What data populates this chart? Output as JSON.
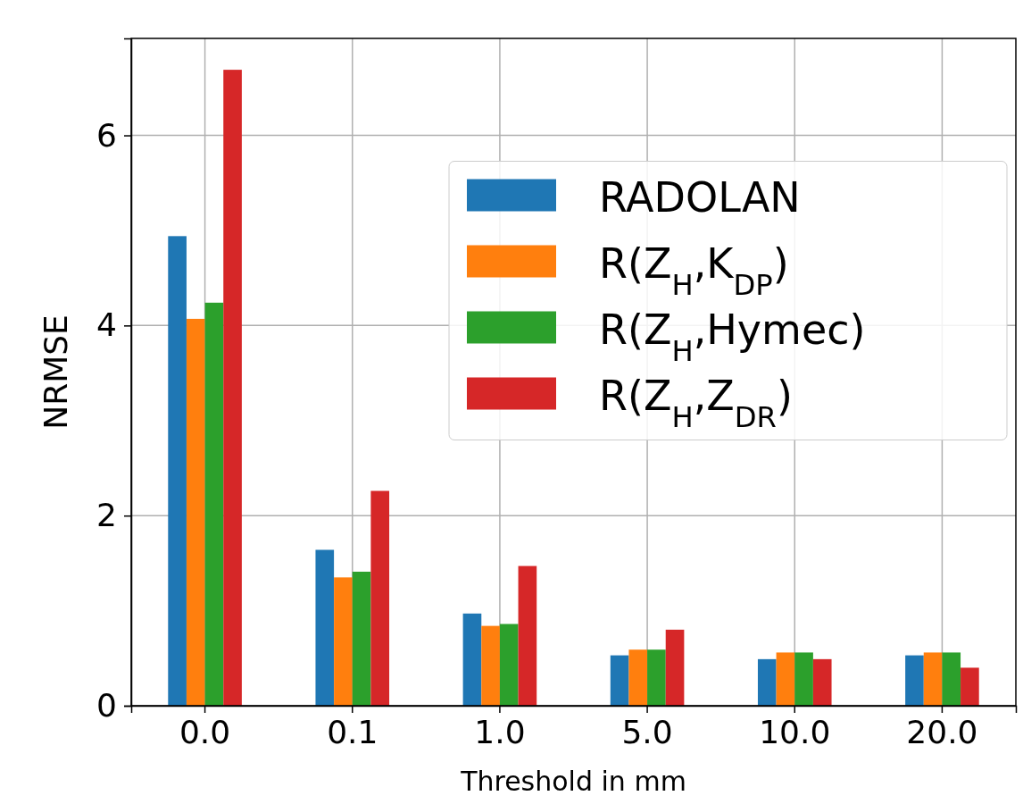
{
  "chart_data": {
    "type": "bar",
    "xlabel": "Threshold in mm",
    "ylabel": "NRMSE",
    "categories": [
      "0.0",
      "0.1",
      "1.0",
      "5.0",
      "10.0",
      "20.0"
    ],
    "series": [
      {
        "name": "RADOLAN",
        "color": "#1f77b4",
        "values": [
          4.94,
          1.64,
          0.97,
          0.53,
          0.49,
          0.53
        ]
      },
      {
        "name": "R(Z$_{H}$,K$_{DP}$)",
        "color": "#ff7f0e",
        "values": [
          4.07,
          1.35,
          0.84,
          0.59,
          0.56,
          0.56
        ]
      },
      {
        "name": "R(Z$_{H}$,Hymec)",
        "color": "#2ca02c",
        "values": [
          4.24,
          1.41,
          0.86,
          0.59,
          0.56,
          0.56
        ]
      },
      {
        "name": "R(Z$_{H}$,Z$_{DR}$)",
        "color": "#d62728",
        "values": [
          6.69,
          2.26,
          1.47,
          0.8,
          0.49,
          0.4
        ]
      }
    ],
    "ylim": [
      0,
      7.02
    ],
    "yticks": [
      0,
      2,
      4,
      6
    ],
    "grid": true,
    "legend": "right"
  }
}
